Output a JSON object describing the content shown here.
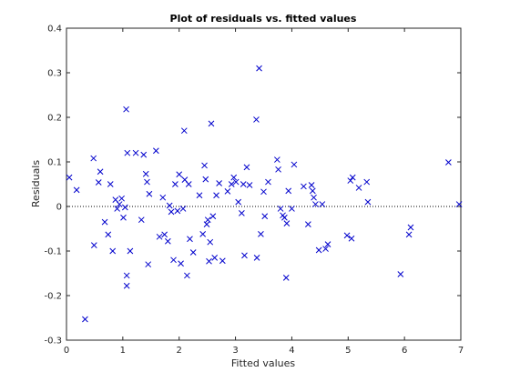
{
  "chart_data": {
    "type": "scatter",
    "title": "Plot of residuals vs. fitted values",
    "xlabel": "Fitted values",
    "ylabel": "Residuals",
    "xlim": [
      0,
      7
    ],
    "ylim": [
      -0.3,
      0.4
    ],
    "xticks": [
      "0",
      "1",
      "2",
      "3",
      "4",
      "5",
      "6",
      "7"
    ],
    "yticks": [
      "-0.3",
      "-0.2",
      "-0.1",
      "0",
      "0.1",
      "0.2",
      "0.3",
      "0.4"
    ],
    "marker": "x",
    "marker_color": "#0000cc",
    "zero_line": {
      "y": 0,
      "style": "dotted",
      "color": "#000000"
    },
    "grid": false,
    "points": [
      [
        0.05,
        0.065
      ],
      [
        0.18,
        0.037
      ],
      [
        0.33,
        -0.253
      ],
      [
        0.48,
        0.108
      ],
      [
        0.49,
        -0.087
      ],
      [
        0.57,
        0.054
      ],
      [
        0.6,
        0.078
      ],
      [
        0.68,
        -0.035
      ],
      [
        0.74,
        -0.063
      ],
      [
        0.78,
        0.05
      ],
      [
        0.82,
        -0.1
      ],
      [
        0.87,
        0.015
      ],
      [
        0.9,
        -0.005
      ],
      [
        0.94,
        0.005
      ],
      [
        0.98,
        0.018
      ],
      [
        1.01,
        -0.025
      ],
      [
        1.04,
        -0.002
      ],
      [
        1.06,
        0.218
      ],
      [
        1.07,
        -0.155
      ],
      [
        1.07,
        -0.178
      ],
      [
        1.08,
        0.12
      ],
      [
        1.13,
        -0.1
      ],
      [
        1.23,
        0.12
      ],
      [
        1.33,
        -0.03
      ],
      [
        1.37,
        0.116
      ],
      [
        1.41,
        0.073
      ],
      [
        1.43,
        0.055
      ],
      [
        1.45,
        -0.13
      ],
      [
        1.47,
        0.028
      ],
      [
        1.59,
        0.125
      ],
      [
        1.65,
        -0.068
      ],
      [
        1.71,
        0.02
      ],
      [
        1.74,
        -0.063
      ],
      [
        1.8,
        -0.078
      ],
      [
        1.83,
        0.002
      ],
      [
        1.86,
        -0.012
      ],
      [
        1.9,
        -0.12
      ],
      [
        1.93,
        0.05
      ],
      [
        1.97,
        -0.01
      ],
      [
        2.0,
        0.072
      ],
      [
        2.03,
        -0.128
      ],
      [
        2.07,
        -0.005
      ],
      [
        2.09,
        0.17
      ],
      [
        2.1,
        0.06
      ],
      [
        2.14,
        -0.155
      ],
      [
        2.17,
        0.05
      ],
      [
        2.19,
        -0.073
      ],
      [
        2.25,
        -0.103
      ],
      [
        2.36,
        0.025
      ],
      [
        2.42,
        -0.062
      ],
      [
        2.45,
        0.092
      ],
      [
        2.47,
        0.061
      ],
      [
        2.49,
        -0.04
      ],
      [
        2.51,
        -0.03
      ],
      [
        2.53,
        -0.123
      ],
      [
        2.55,
        -0.08
      ],
      [
        2.57,
        0.186
      ],
      [
        2.6,
        -0.022
      ],
      [
        2.63,
        -0.115
      ],
      [
        2.66,
        0.025
      ],
      [
        2.71,
        0.052
      ],
      [
        2.77,
        -0.122
      ],
      [
        2.86,
        0.034
      ],
      [
        2.93,
        0.05
      ],
      [
        2.97,
        0.065
      ],
      [
        3.01,
        0.055
      ],
      [
        3.05,
        0.01
      ],
      [
        3.11,
        -0.015
      ],
      [
        3.14,
        0.05
      ],
      [
        3.16,
        -0.11
      ],
      [
        3.2,
        0.088
      ],
      [
        3.25,
        0.048
      ],
      [
        3.37,
        0.195
      ],
      [
        3.38,
        -0.115
      ],
      [
        3.42,
        0.31
      ],
      [
        3.45,
        -0.062
      ],
      [
        3.5,
        0.033
      ],
      [
        3.52,
        -0.022
      ],
      [
        3.58,
        0.055
      ],
      [
        3.74,
        0.105
      ],
      [
        3.76,
        0.083
      ],
      [
        3.8,
        -0.005
      ],
      [
        3.84,
        -0.02
      ],
      [
        3.87,
        -0.025
      ],
      [
        3.9,
        -0.16
      ],
      [
        3.91,
        -0.038
      ],
      [
        3.94,
        0.035
      ],
      [
        4.0,
        -0.005
      ],
      [
        4.04,
        0.094
      ],
      [
        4.21,
        0.045
      ],
      [
        4.29,
        -0.04
      ],
      [
        4.35,
        0.048
      ],
      [
        4.37,
        0.035
      ],
      [
        4.39,
        0.02
      ],
      [
        4.42,
        0.005
      ],
      [
        4.48,
        -0.098
      ],
      [
        4.54,
        0.005
      ],
      [
        4.6,
        -0.095
      ],
      [
        4.64,
        -0.085
      ],
      [
        4.98,
        -0.065
      ],
      [
        5.04,
        0.058
      ],
      [
        5.06,
        -0.072
      ],
      [
        5.08,
        0.065
      ],
      [
        5.19,
        0.042
      ],
      [
        5.33,
        0.055
      ],
      [
        5.35,
        0.01
      ],
      [
        5.93,
        -0.152
      ],
      [
        6.08,
        -0.063
      ],
      [
        6.11,
        -0.047
      ],
      [
        6.78,
        0.099
      ],
      [
        6.97,
        0.005
      ]
    ]
  }
}
